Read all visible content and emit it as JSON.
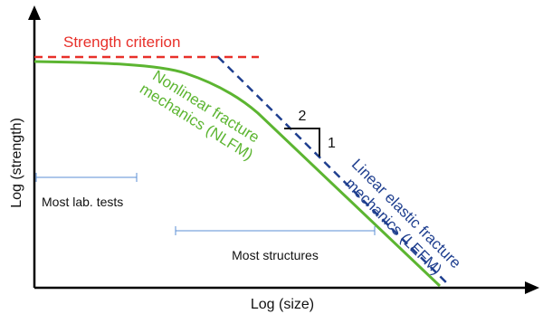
{
  "axes": {
    "x_label": "Log (size)",
    "y_label": "Log (strength)"
  },
  "curves": {
    "strength_criterion": {
      "label": "Strength criterion",
      "color": "#e8302a"
    },
    "nlfm": {
      "label_line1": "Nonlinear fracture",
      "label_line2": "mechanics (NLFM)",
      "color": "#5cb531"
    },
    "lefm": {
      "label_line1": "Linear elastic fracture",
      "label_line2": "mechanics (LEFM)",
      "color": "#1f3f8f"
    }
  },
  "slope_triangle": {
    "run": "2",
    "rise": "1"
  },
  "ranges": {
    "lab_tests": {
      "label": "Most lab. tests",
      "color": "#5b8fd4"
    },
    "structures": {
      "label": "Most structures",
      "color": "#5b8fd4"
    }
  },
  "colors": {
    "axis": "#000000"
  }
}
